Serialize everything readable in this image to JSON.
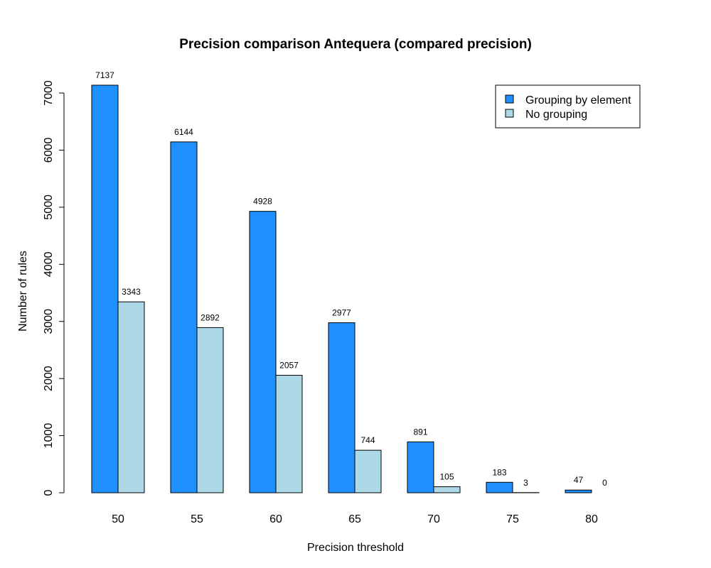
{
  "chart_data": {
    "type": "bar",
    "title": "Precision comparison Antequera (compared precision)",
    "xlabel": "Precision threshold",
    "ylabel": "Number of rules",
    "categories": [
      "50",
      "55",
      "60",
      "65",
      "70",
      "75",
      "80"
    ],
    "series": [
      {
        "name": "Grouping by element",
        "color": "#1e90ff",
        "values": [
          7137,
          6144,
          4928,
          2977,
          891,
          183,
          47
        ]
      },
      {
        "name": "No grouping",
        "color": "#add8e6",
        "values": [
          3343,
          2892,
          2057,
          744,
          105,
          3,
          0
        ]
      }
    ],
    "yticks": [
      0,
      1000,
      2000,
      3000,
      4000,
      5000,
      6000,
      7000
    ],
    "ylim": [
      0,
      7137
    ],
    "legend_position": "top-right",
    "grid": false
  }
}
